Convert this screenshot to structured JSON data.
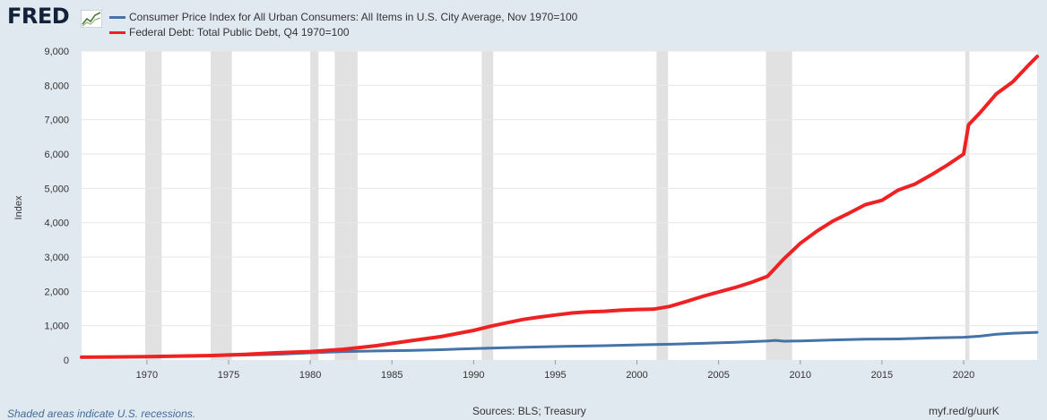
{
  "logo": {
    "text": "FRED",
    "icon": "fred-graph-icon"
  },
  "footer": {
    "note": "Shaded areas indicate U.S. recessions.",
    "sources": "Sources: BLS; Treasury",
    "link": "myf.red/g/uurK"
  },
  "colors": {
    "background": "#e1e9f0",
    "plot": "#ffffff",
    "recession": "#e1e1e1",
    "grid": "#e6e6e6",
    "cpi": "#4572a7",
    "debt": "#ee2222"
  },
  "chart_data": {
    "type": "line",
    "title": "",
    "xlabel": "",
    "ylabel": "Index",
    "xlim": [
      1966.0,
      2024.5
    ],
    "ylim": [
      0,
      9000
    ],
    "yticks": [
      0,
      1000,
      2000,
      3000,
      4000,
      5000,
      6000,
      7000,
      8000,
      9000
    ],
    "ytick_labels": [
      "0",
      "1,000",
      "2,000",
      "3,000",
      "4,000",
      "5,000",
      "6,000",
      "7,000",
      "8,000",
      "9,000"
    ],
    "xticks": [
      1970,
      1975,
      1980,
      1985,
      1990,
      1995,
      2000,
      2005,
      2010,
      2015,
      2020
    ],
    "xtick_labels": [
      "1970",
      "1975",
      "1980",
      "1985",
      "1990",
      "1995",
      "2000",
      "2005",
      "2010",
      "2015",
      "2020"
    ],
    "grid": true,
    "legend_position": "top-left",
    "recessions": [
      [
        1969.9,
        1970.9
      ],
      [
        1973.9,
        1975.2
      ],
      [
        1980.0,
        1980.5
      ],
      [
        1981.5,
        1982.9
      ],
      [
        1990.5,
        1991.2
      ],
      [
        2001.2,
        2001.9
      ],
      [
        2007.9,
        2009.5
      ],
      [
        2020.1,
        2020.35
      ]
    ],
    "series": [
      {
        "name": "Consumer Price Index for All Urban Consumers: All Items in U.S. City Average, Nov 1970=100",
        "color": "#4572a7",
        "x": [
          1966,
          1968,
          1970,
          1972,
          1974,
          1976,
          1978,
          1980,
          1982,
          1984,
          1986,
          1988,
          1990,
          1992,
          1994,
          1996,
          1998,
          2000,
          2002,
          2004,
          2006,
          2008,
          2008.5,
          2009,
          2010,
          2012,
          2014,
          2016,
          2018,
          2020,
          2021,
          2022,
          2023,
          2024.5
        ],
        "values": [
          80,
          87,
          100,
          107,
          124,
          144,
          166,
          208,
          244,
          264,
          276,
          301,
          334,
          360,
          380,
          402,
          417,
          440,
          460,
          484,
          517,
          556,
          570,
          548,
          556,
          585,
          604,
          613,
          642,
          662,
          695,
          751,
          779,
          805
        ]
      },
      {
        "name": "Federal Debt: Total Public Debt, Q4 1970=100",
        "color": "#ee2222",
        "x": [
          1966,
          1968,
          1970,
          1972,
          1974,
          1976,
          1978,
          1980,
          1982,
          1984,
          1986,
          1988,
          1990,
          1991,
          1992,
          1993,
          1994,
          1995,
          1996,
          1997,
          1998,
          1999,
          2000,
          2001,
          2002,
          2003,
          2004,
          2005,
          2006,
          2007,
          2008,
          2009,
          2010,
          2011,
          2012,
          2013,
          2014,
          2015,
          2016,
          2017,
          2018,
          2019,
          2020,
          2020.3,
          2021,
          2022,
          2023,
          2024,
          2024.5
        ],
        "values": [
          80,
          88,
          100,
          115,
          130,
          165,
          210,
          245,
          310,
          415,
          550,
          680,
          860,
          980,
          1080,
          1180,
          1250,
          1310,
          1370,
          1400,
          1420,
          1450,
          1470,
          1480,
          1560,
          1700,
          1850,
          1980,
          2110,
          2260,
          2440,
          2950,
          3400,
          3750,
          4050,
          4280,
          4530,
          4650,
          4950,
          5120,
          5390,
          5680,
          6000,
          6850,
          7200,
          7750,
          8100,
          8600,
          8840
        ]
      }
    ]
  }
}
